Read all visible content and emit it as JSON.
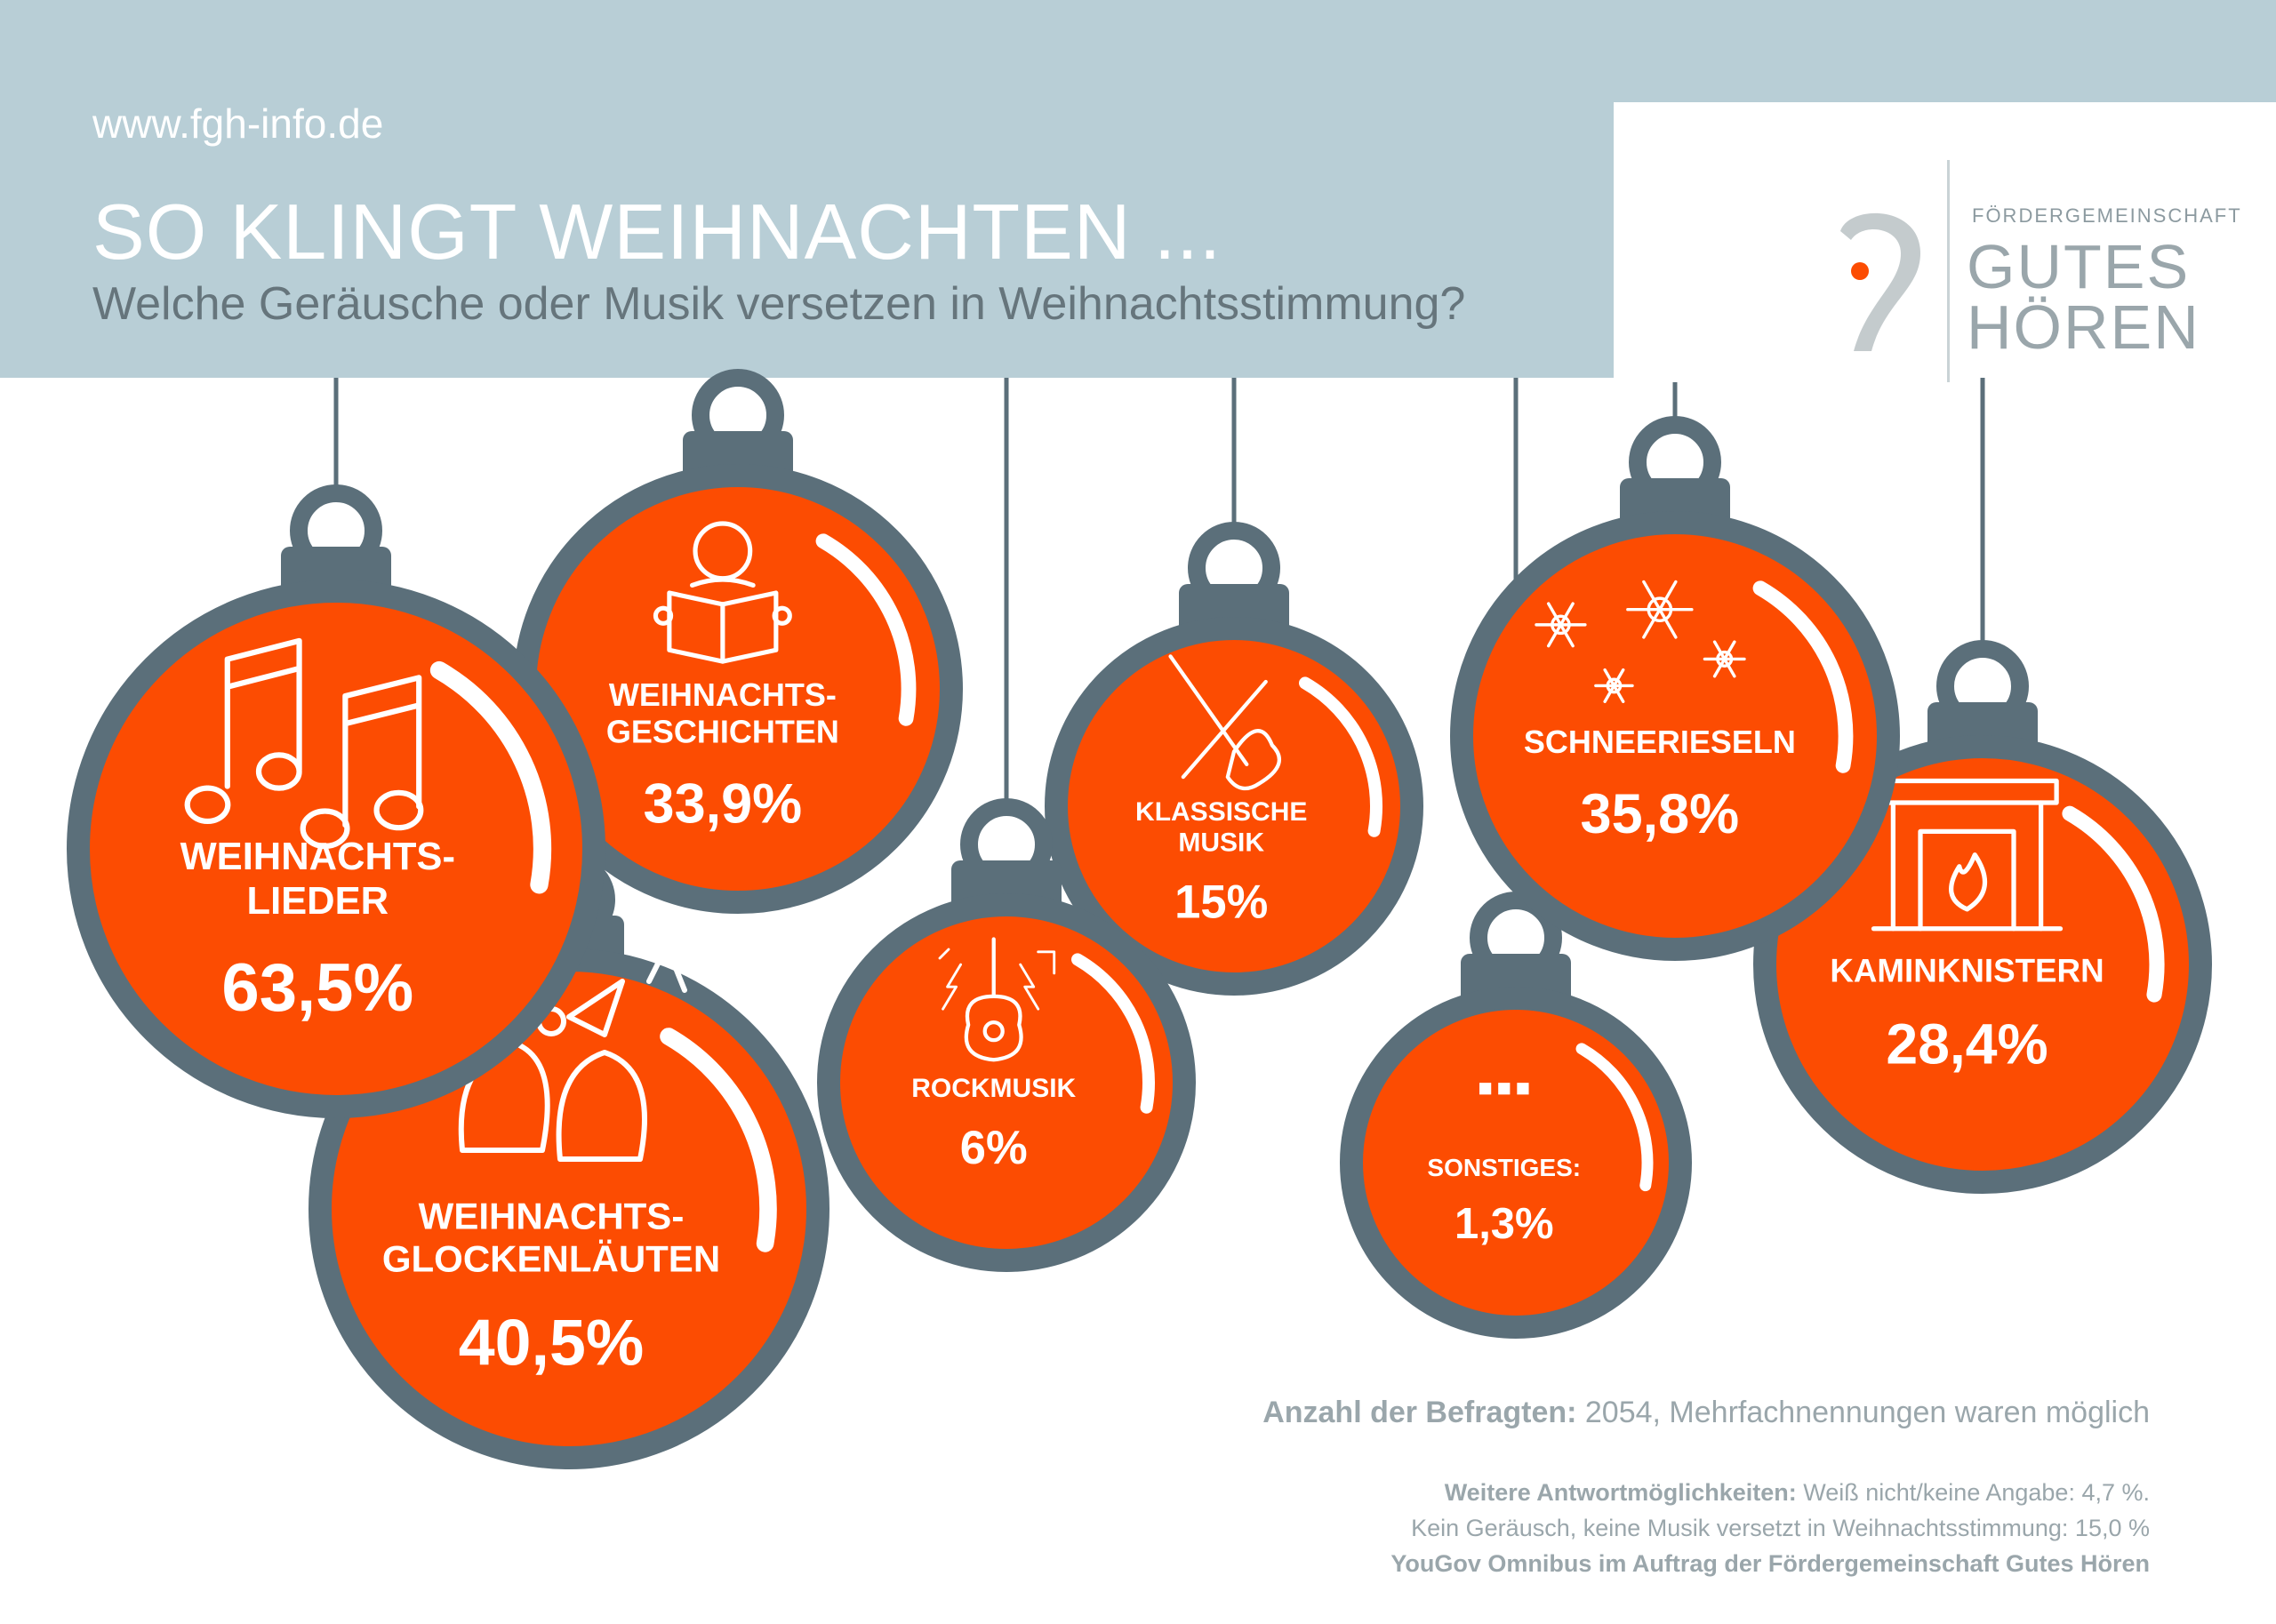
{
  "header": {
    "url": "www.fgh-info.de",
    "title": "SO KLINGT WEIHNACHTEN ...",
    "subtitle": "Welche Geräusche oder Musik versetzen in Weihnachtsstimmung?"
  },
  "logo": {
    "small": "FÖRDERGEMEINSCHAFT",
    "line1": "GUTES",
    "line2": "HÖREN"
  },
  "colors": {
    "ornament_fill": "#fc4c02",
    "ornament_rim": "#5b6f7a",
    "header_band": "#b8ced6"
  },
  "chart_data": {
    "type": "bubble",
    "series": [
      {
        "label_lines": [
          "WEIHNACHTS-",
          "LIEDER"
        ],
        "value": 63.5,
        "value_label": "63,5%",
        "icon": "music-notes-icon"
      },
      {
        "label_lines": [
          "WEIHNACHTS-",
          "GLOCKENLÄUTEN"
        ],
        "value": 40.5,
        "value_label": "40,5%",
        "icon": "bells-icon"
      },
      {
        "label_lines": [
          "SCHNEERIESELN"
        ],
        "value": 35.8,
        "value_label": "35,8%",
        "icon": "snowflakes-icon"
      },
      {
        "label_lines": [
          "WEIHNACHTS-",
          "GESCHICHTEN"
        ],
        "value": 33.9,
        "value_label": "33,9%",
        "icon": "reader-icon"
      },
      {
        "label_lines": [
          "KAMINKNISTERN"
        ],
        "value": 28.4,
        "value_label": "28,4%",
        "icon": "fireplace-icon"
      },
      {
        "label_lines": [
          "KLASSISCHE",
          "MUSIK"
        ],
        "value": 15,
        "value_label": "15%",
        "icon": "violin-icon"
      },
      {
        "label_lines": [
          "ROCKMUSIK"
        ],
        "value": 6,
        "value_label": "6%",
        "icon": "guitar-icon"
      },
      {
        "label_lines": [
          "SONSTIGES:"
        ],
        "value": 1.3,
        "value_label": "1,3%",
        "icon": "ellipsis-icon"
      }
    ]
  },
  "footnotes": {
    "respondents_label": "Anzahl der Befragten:",
    "respondents_text": " 2054, Mehrfachnennungen waren möglich",
    "more_label": "Weitere Antwortmöglichkeiten:",
    "more_text": " Weiß nicht/keine Angabe: 4,7 %.",
    "no_sound": "Kein Geräusch, keine Musik versetzt in Weihnachtsstimmung: 15,0 %",
    "source": "YouGov Omnibus im Auftrag der Fördergemeinschaft Gutes Hören"
  }
}
